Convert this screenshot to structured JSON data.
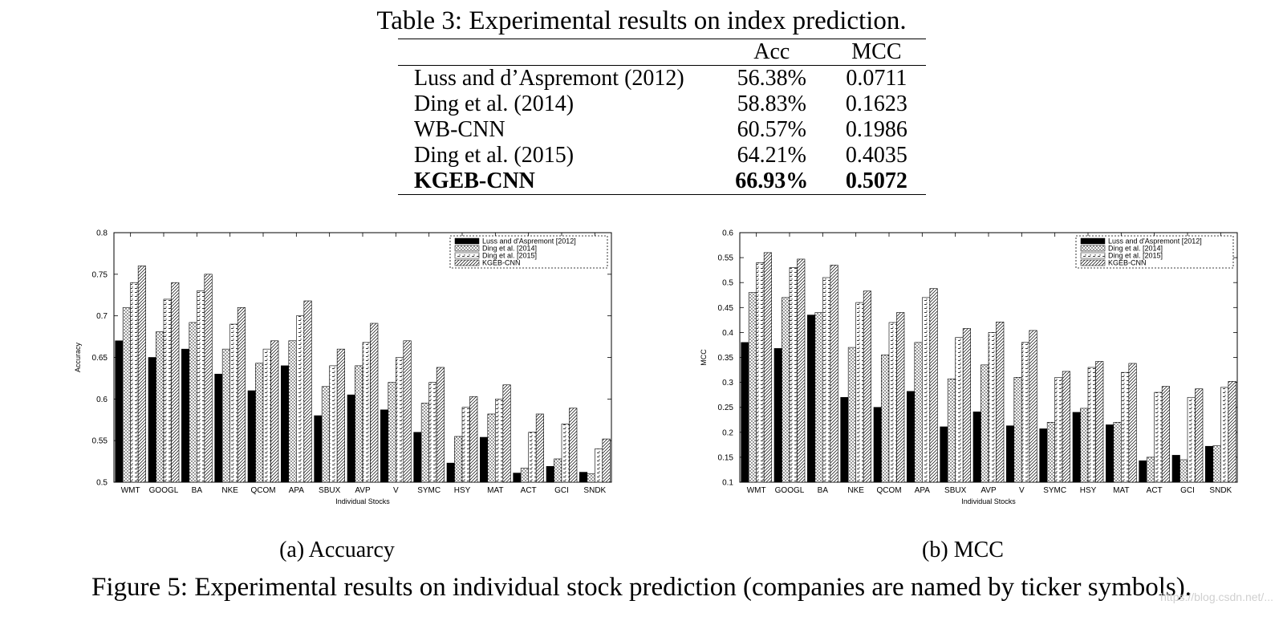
{
  "table": {
    "caption": "Table 3: Experimental results on index prediction.",
    "headers": [
      "",
      "Acc",
      "MCC"
    ],
    "rows": [
      {
        "name": "Luss and d’Aspremont (2012)",
        "acc": "56.38%",
        "mcc": "0.0711"
      },
      {
        "name": "Ding et al. (2014)",
        "acc": "58.83%",
        "mcc": "0.1623"
      },
      {
        "name": "WB-CNN",
        "acc": "60.57%",
        "mcc": "0.1986"
      },
      {
        "name": "Ding et al. (2015)",
        "acc": "64.21%",
        "mcc": "0.4035"
      },
      {
        "name": "KGEB-CNN",
        "acc": "66.93%",
        "mcc": "0.5072"
      }
    ]
  },
  "chart_data": [
    {
      "type": "bar",
      "xlabel": "Individual Stocks",
      "ylabel": "Accuracy",
      "ylim": [
        0.5,
        0.8
      ],
      "yticks": [
        "0.5",
        "0.55",
        "0.6",
        "0.65",
        "0.7",
        "0.75",
        "0.8"
      ],
      "legend_position": "top-right",
      "categories": [
        "WMT",
        "GOOGL",
        "BA",
        "NKE",
        "QCOM",
        "APA",
        "SBUX",
        "AVP",
        "V",
        "SYMC",
        "HSY",
        "MAT",
        "ACT",
        "GCI",
        "SNDK"
      ],
      "series": [
        {
          "name": "Luss and d'Aspremont [2012]",
          "values": [
            0.67,
            0.65,
            0.66,
            0.63,
            0.61,
            0.64,
            0.58,
            0.605,
            0.587,
            0.56,
            0.523,
            0.554,
            0.511,
            0.519,
            0.512
          ]
        },
        {
          "name": "Ding et al. [2014]",
          "values": [
            0.71,
            0.681,
            0.692,
            0.66,
            0.643,
            0.67,
            0.615,
            0.64,
            0.62,
            0.595,
            0.555,
            0.582,
            0.517,
            0.528,
            0.51
          ]
        },
        {
          "name": "Ding et al. [2015]",
          "values": [
            0.74,
            0.72,
            0.73,
            0.69,
            0.66,
            0.7,
            0.64,
            0.668,
            0.65,
            0.62,
            0.59,
            0.6,
            0.56,
            0.57,
            0.54
          ]
        },
        {
          "name": "KGEB-CNN",
          "values": [
            0.76,
            0.74,
            0.75,
            0.71,
            0.67,
            0.718,
            0.66,
            0.691,
            0.67,
            0.638,
            0.603,
            0.617,
            0.582,
            0.589,
            0.552
          ]
        }
      ]
    },
    {
      "type": "bar",
      "xlabel": "Individual Stocks",
      "ylabel": "MCC",
      "ylim": [
        0.1,
        0.6
      ],
      "yticks": [
        "0.1",
        "0.15",
        "0.2",
        "0.25",
        "0.3",
        "0.35",
        "0.4",
        "0.45",
        "0.5",
        "0.55",
        "0.6"
      ],
      "legend_position": "top-right",
      "categories": [
        "WMT",
        "GOOGL",
        "BA",
        "NKE",
        "QCOM",
        "APA",
        "SBUX",
        "AVP",
        "V",
        "SYMC",
        "HSY",
        "MAT",
        "ACT",
        "GCI",
        "SNDK"
      ],
      "series": [
        {
          "name": "Luss and d'Aspremont [2012]",
          "values": [
            0.38,
            0.368,
            0.435,
            0.27,
            0.25,
            0.282,
            0.211,
            0.241,
            0.213,
            0.207,
            0.24,
            0.215,
            0.143,
            0.154,
            0.172
          ]
        },
        {
          "name": "Ding et al. [2014]",
          "values": [
            0.48,
            0.47,
            0.44,
            0.37,
            0.355,
            0.38,
            0.307,
            0.335,
            0.31,
            0.22,
            0.248,
            0.22,
            0.15,
            0.145,
            0.173
          ]
        },
        {
          "name": "Ding et al. [2015]",
          "values": [
            0.54,
            0.53,
            0.51,
            0.46,
            0.42,
            0.47,
            0.39,
            0.4,
            0.38,
            0.31,
            0.33,
            0.32,
            0.28,
            0.27,
            0.29
          ]
        },
        {
          "name": "KGEB-CNN",
          "values": [
            0.56,
            0.547,
            0.535,
            0.483,
            0.44,
            0.488,
            0.408,
            0.421,
            0.404,
            0.322,
            0.342,
            0.338,
            0.292,
            0.287,
            0.302
          ]
        }
      ]
    }
  ],
  "subcaptions": {
    "a": "(a)  Accuarcy",
    "b": "(b)  MCC"
  },
  "figure_caption": "Figure 5: Experimental results on individual stock prediction (companies are named by ticker symbols).",
  "watermark": "https://blog.csdn.net/..."
}
